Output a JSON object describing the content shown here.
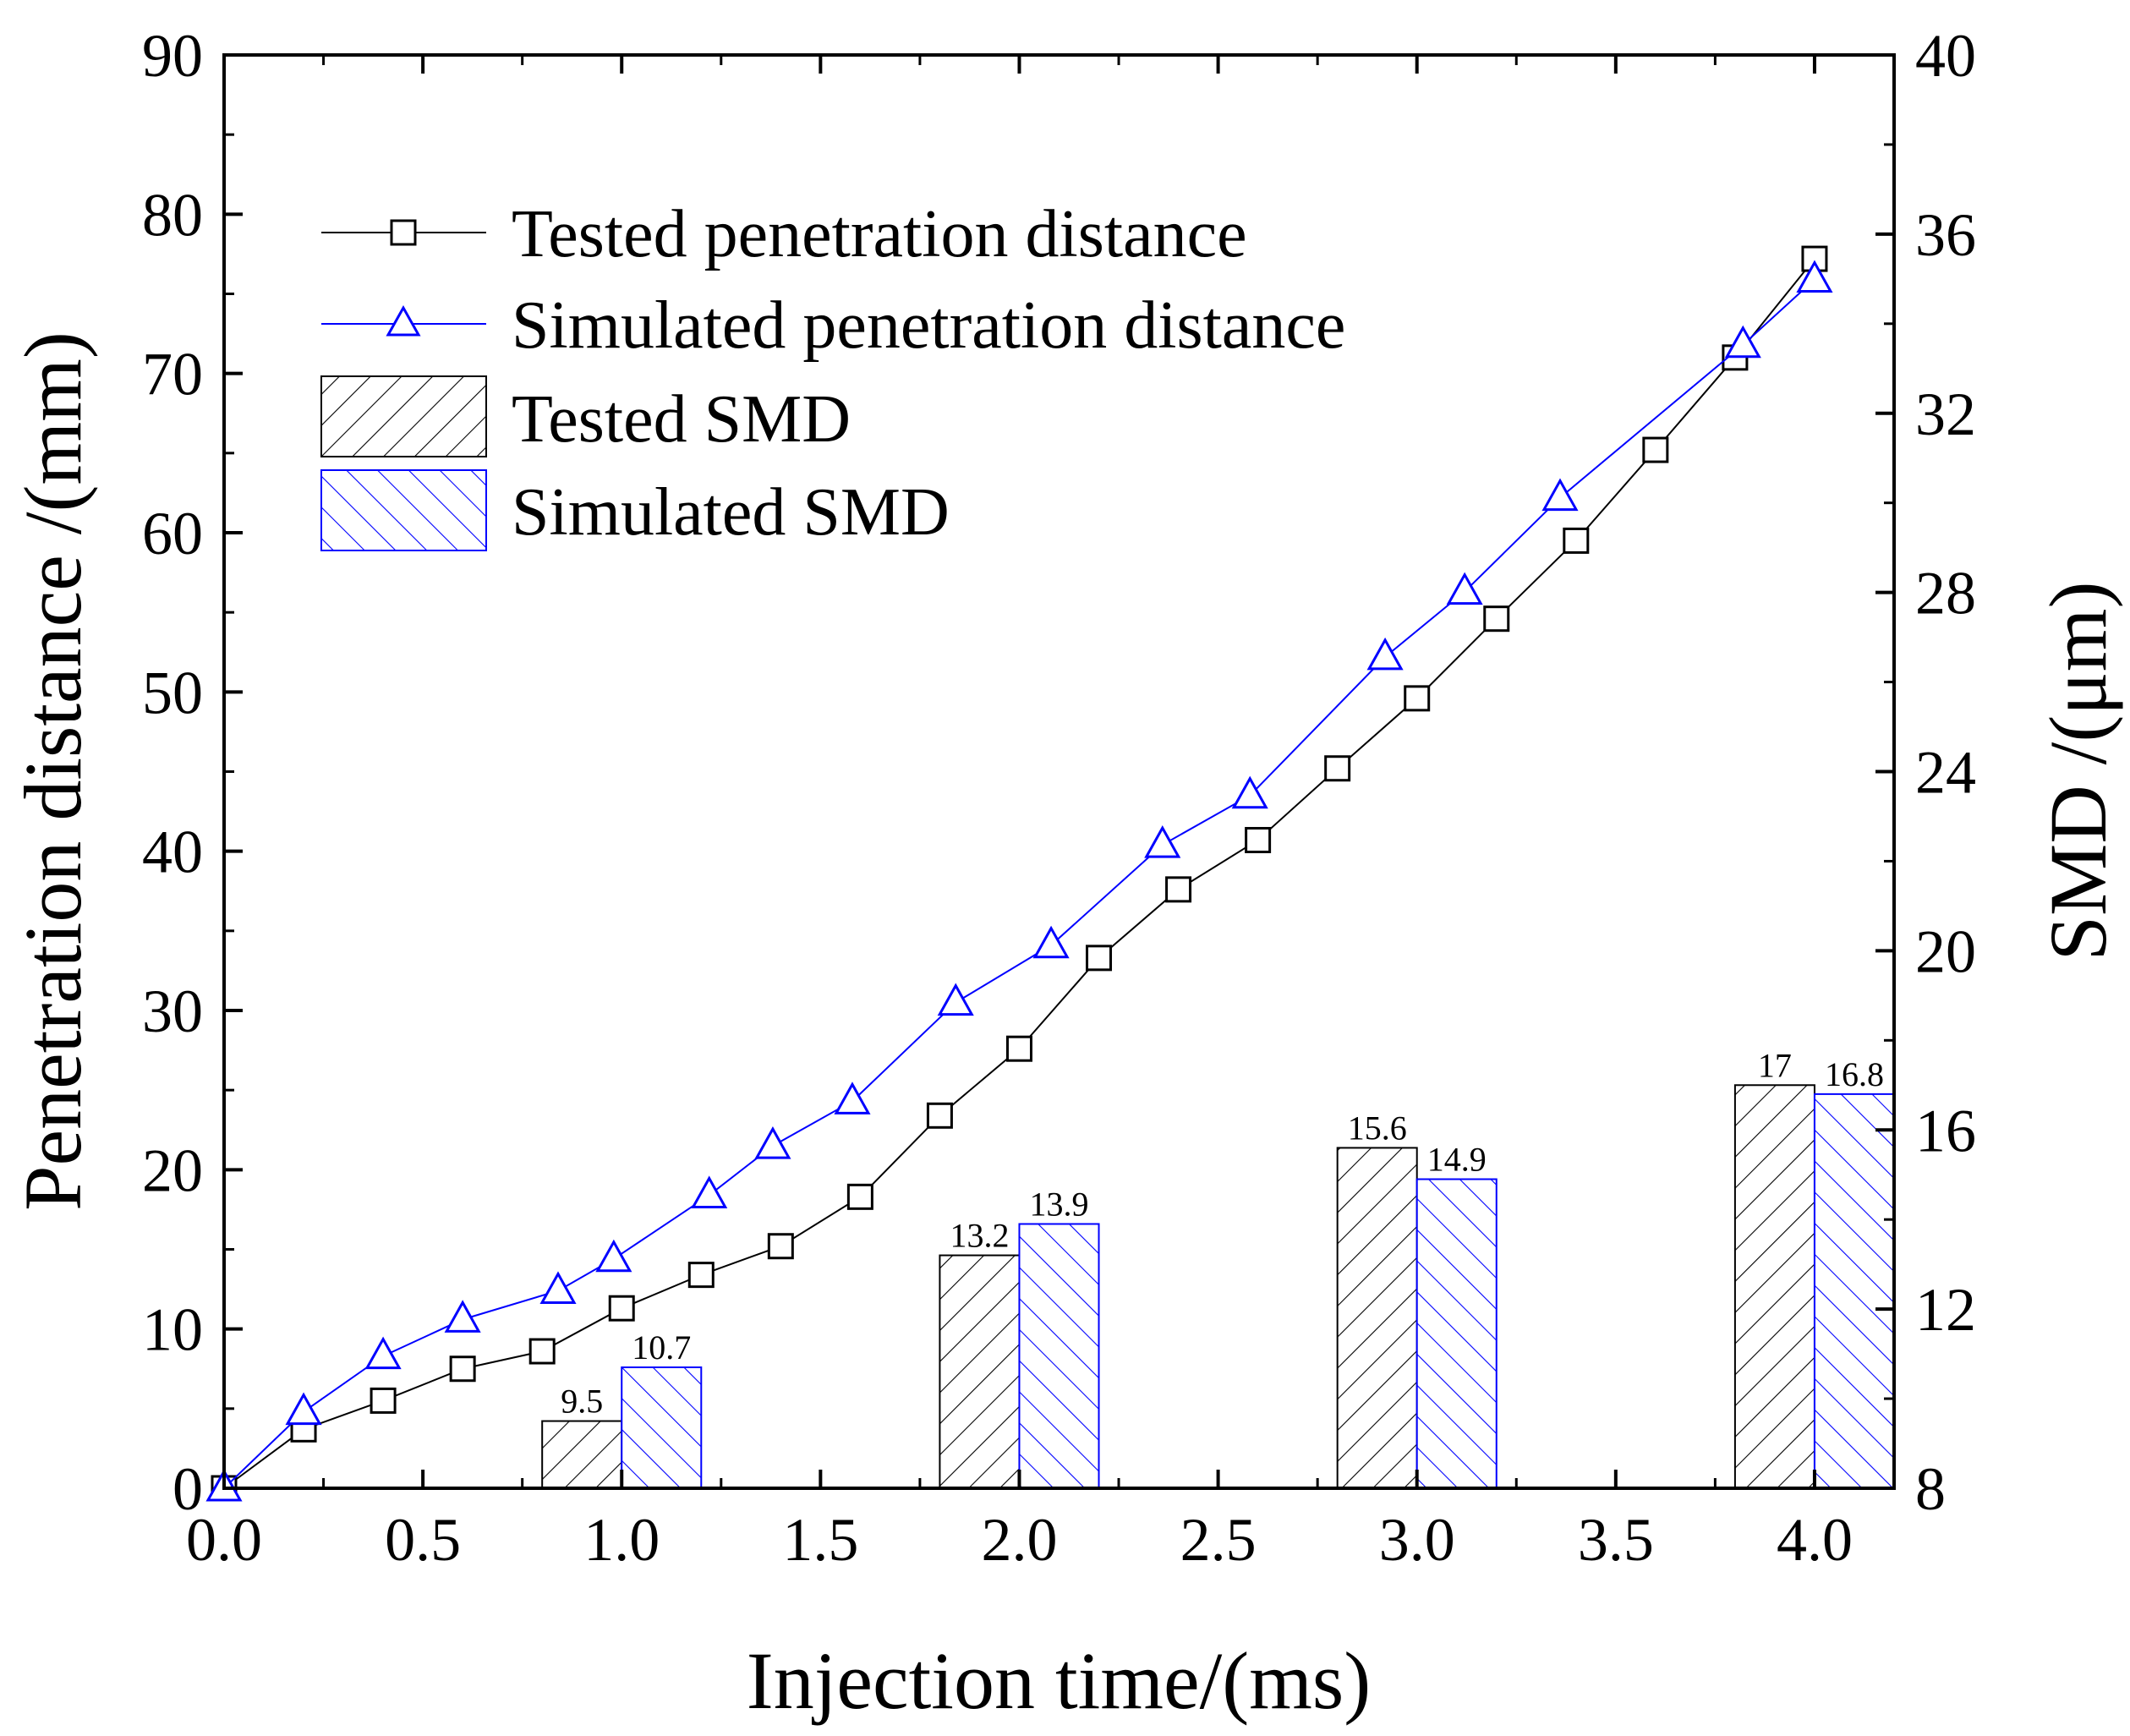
{
  "chart_data": {
    "type": "bar+line",
    "xlabel": "Injection time/(ms)",
    "ylabel_left": "Penetration distance /(mm)",
    "ylabel_right": "SMD /(μm)",
    "xlim": [
      0,
      4.2
    ],
    "ylim_left": [
      0,
      90
    ],
    "ylim_right": [
      8,
      40
    ],
    "x_ticks": [
      "0.0",
      "0.5",
      "1.0",
      "1.5",
      "2.0",
      "2.5",
      "3.0",
      "3.5",
      "4.0"
    ],
    "y_left_ticks": [
      "0",
      "10",
      "20",
      "30",
      "40",
      "50",
      "60",
      "70",
      "80",
      "90"
    ],
    "y_right_ticks": [
      "8",
      "12",
      "16",
      "20",
      "24",
      "28",
      "32",
      "36",
      "40"
    ],
    "legend": {
      "placement": "top-left",
      "entries": [
        "Tested penetration distance",
        "Simulated penetration distance",
        "Tested SMD",
        "Simulated SMD"
      ]
    },
    "series": [
      {
        "name": "Tested penetration distance",
        "type": "line",
        "axis": "left",
        "color": "#000000",
        "marker": "square",
        "x": [
          0,
          0.2,
          0.4,
          0.6,
          0.8,
          1.0,
          1.2,
          1.4,
          1.6,
          1.8,
          2.0,
          2.2,
          2.4,
          2.6,
          2.8,
          3.0,
          3.2,
          3.4,
          3.6,
          3.8,
          4.0
        ],
        "y": [
          0,
          3.7,
          5.5,
          7.5,
          8.6,
          11.3,
          13.4,
          15.2,
          18.3,
          23.4,
          27.6,
          33.3,
          37.6,
          40.7,
          45.2,
          49.6,
          54.6,
          59.5,
          65.2,
          71.0,
          77.2
        ]
      },
      {
        "name": "Simulated penetration distance",
        "type": "line",
        "axis": "left",
        "color": "#0000ff",
        "marker": "triangle",
        "x": [
          0,
          0.2,
          0.4,
          0.6,
          0.84,
          0.98,
          1.22,
          1.38,
          1.58,
          1.84,
          2.08,
          2.36,
          2.58,
          2.92,
          3.12,
          3.36,
          3.82,
          4.0
        ],
        "y": [
          0,
          4.8,
          8.3,
          10.6,
          12.4,
          14.4,
          18.4,
          21.5,
          24.3,
          30.5,
          34.1,
          40.4,
          43.5,
          52.2,
          56.3,
          62.2,
          71.8,
          75.9
        ]
      },
      {
        "name": "Tested SMD",
        "type": "bar",
        "axis": "right",
        "color": "#000000",
        "hatch": "forward",
        "categories": [
          1.0,
          2.0,
          3.0,
          4.0
        ],
        "values": [
          9.5,
          13.2,
          15.6,
          17
        ],
        "labels": [
          "9.5",
          "13.2",
          "15.6",
          "17"
        ]
      },
      {
        "name": "Simulated SMD",
        "type": "bar",
        "axis": "right",
        "color": "#0000ff",
        "hatch": "backward",
        "categories": [
          1.0,
          2.0,
          3.0,
          4.0
        ],
        "values": [
          10.7,
          13.9,
          14.9,
          16.8
        ],
        "labels": [
          "10.7",
          "13.9",
          "14.9",
          "16.8"
        ]
      }
    ]
  }
}
